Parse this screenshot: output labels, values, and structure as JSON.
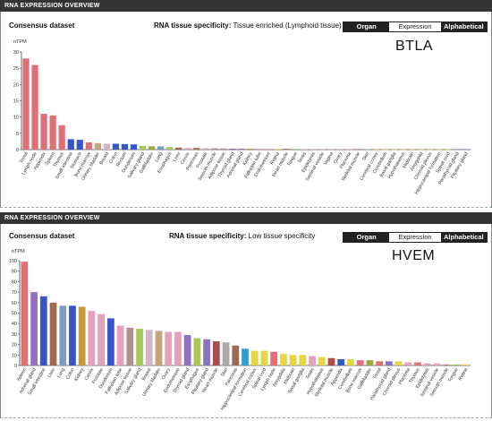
{
  "panels": [
    {
      "header": "RNA EXPRESSION OVERVIEW",
      "dataset": "Consensus dataset",
      "specificity_label": "RNA tissue specificity:",
      "specificity_value": "Tissue enriched (Lymphoid tissue)",
      "buttons": [
        "Organ",
        "Expression",
        "Alphabetical"
      ],
      "active_buttons": [
        "Organ",
        "Alphabetical"
      ],
      "gene": "BTLA",
      "chart_data": {
        "type": "bar",
        "ylabel": "nTPM",
        "ylim": [
          0,
          30
        ],
        "yticks": [
          0,
          5,
          10,
          15,
          20,
          25,
          30
        ],
        "categories": [
          "Tonsil",
          "Lymph node",
          "Appendix",
          "Spleen",
          "Thymus",
          "Small intestine",
          "Stomach",
          "Bone marrow",
          "Urinary bladder",
          "Breast",
          "Colon",
          "Rectum",
          "Duodenum",
          "Salivary gland",
          "Gallbladder",
          "Lung",
          "Esophagus",
          "Liver",
          "Cervix",
          "Pancreas",
          "Prostate",
          "Smooth muscle",
          "Adipose tissue",
          "Thyroid gland",
          "Adrenal gland",
          "Kidney",
          "Fallopian tube",
          "Endometrium",
          "Retina",
          "Heart muscle",
          "Tongue",
          "Testis",
          "Epididymis",
          "Seminal vesicle",
          "Vagina",
          "Ovary",
          "Placenta",
          "Skeletal muscle",
          "Skin",
          "Cerebral cortex",
          "Cerebellum",
          "Basal ganglia",
          "Hypothalamus",
          "Midbrain",
          "Amygdala",
          "Choroid plexus",
          "Hippocampal formation",
          "Spinal cord",
          "Parathyroid gland",
          "Pituitary gland"
        ],
        "values": [
          28,
          26,
          11,
          10.5,
          7.5,
          3.2,
          3,
          2.2,
          2,
          1.8,
          1.8,
          1.7,
          1.6,
          1.1,
          1,
          1,
          0.8,
          0.6,
          0.5,
          0.5,
          0.4,
          0.4,
          0.35,
          0.3,
          0.3,
          0.3,
          0.3,
          0.25,
          0.2,
          0.2,
          0.2,
          0.15,
          0.15,
          0.15,
          0.1,
          0.1,
          0.1,
          0.1,
          0.1,
          0.05,
          0.05,
          0.05,
          0.05,
          0.05,
          0.05,
          0.05,
          0.05,
          0.05,
          0.05,
          0.05
        ],
        "colors": [
          "#e07078",
          "#e07078",
          "#e07078",
          "#e07078",
          "#e07078",
          "#3655c8",
          "#3655c8",
          "#e07078",
          "#c8a37a",
          "#d1b6c8",
          "#3655c8",
          "#3655c8",
          "#3655c8",
          "#a9c85a",
          "#9da93a",
          "#7a9ec0",
          "#a9c85a",
          "#9e6a52",
          "#e3a1bd",
          "#9e6a52",
          "#e3a1bd",
          "#b38f8f",
          "#b38f8f",
          "#9070c0",
          "#9070c0",
          "#c89a3c",
          "#e3a1bd",
          "#e3a1bd",
          "#eed25a",
          "#b04b4b",
          "#a9c85a",
          "#e3a1bd",
          "#e3a1bd",
          "#e3a1bd",
          "#e3a1bd",
          "#e3a1bd",
          "#e3a1bd",
          "#b04b4b",
          "#a9a9a9",
          "#e6d645",
          "#e6d645",
          "#e6d645",
          "#e6d645",
          "#e6d645",
          "#e6d645",
          "#e6d645",
          "#e6d645",
          "#e6d645",
          "#9070c0",
          "#9070c0"
        ]
      }
    },
    {
      "header": "RNA EXPRESSION OVERVIEW",
      "dataset": "Consensus dataset",
      "specificity_label": "RNA tissue specificity:",
      "specificity_value": "Low tissue specificity",
      "buttons": [
        "Organ",
        "Expression",
        "Alphabetical"
      ],
      "active_buttons": [
        "Organ",
        "Alphabetical"
      ],
      "gene": "HVEM",
      "chart_data": {
        "type": "bar",
        "ylabel": "nTPM",
        "ylim": [
          0,
          100
        ],
        "yticks": [
          0,
          10,
          20,
          30,
          40,
          50,
          60,
          70,
          80,
          90,
          100
        ],
        "categories": [
          "Spleen",
          "Adrenal gland",
          "Small intestine",
          "Liver",
          "Lung",
          "Colon",
          "Kidney",
          "Cervix",
          "Prostate",
          "Duodenum",
          "Fallopian tube",
          "Adipose tissue",
          "Salivary gland",
          "Breast",
          "Urinary bladder",
          "Ovary",
          "Endometrium",
          "Thyroid gland",
          "Esophagus",
          "Pituitary gland",
          "Heart muscle",
          "Skin",
          "Pancreas",
          "Hippocampal formation",
          "Cerebral cortex",
          "Spinal cord",
          "Lymph node",
          "Amygdala",
          "Midbrain",
          "Basal ganglia",
          "Testis",
          "Hypothalamus",
          "Skeletal muscle",
          "Appendix",
          "Cerebellum",
          "Bone marrow",
          "Gallbladder",
          "Tonsil",
          "Parathyroid gland",
          "Choroid plexus",
          "Placenta",
          "Thymus",
          "Epididymis",
          "Seminal vesicle",
          "Smooth muscle",
          "Tongue",
          "Retina"
        ],
        "values": [
          99,
          70,
          66,
          60,
          57,
          57,
          56,
          52,
          49,
          45,
          38,
          36,
          35,
          34,
          33,
          32,
          32,
          29,
          26,
          25,
          23,
          22,
          19,
          16,
          14,
          14,
          13,
          11,
          10,
          10,
          9,
          8,
          7,
          6,
          6,
          5,
          5,
          4,
          4,
          4,
          3,
          3,
          2,
          2,
          1,
          1,
          1
        ],
        "colors": [
          "#e07078",
          "#9070c0",
          "#3655c8",
          "#9e6a52",
          "#7a9ec0",
          "#3655c8",
          "#c89a3c",
          "#e3a1bd",
          "#e3a1bd",
          "#3655c8",
          "#e3a1bd",
          "#b38f8f",
          "#a9c85a",
          "#d1b6c8",
          "#c8a37a",
          "#e3a1bd",
          "#e3a1bd",
          "#9070c0",
          "#a9c85a",
          "#9070c0",
          "#b04b4b",
          "#a9a9a9",
          "#9e6a52",
          "#2a9fd0",
          "#e6d645",
          "#e6d645",
          "#e07078",
          "#e6d645",
          "#e6d645",
          "#e6d645",
          "#e3a1bd",
          "#e6d645",
          "#b04b4b",
          "#3655c8",
          "#e6d645",
          "#e07078",
          "#9da93a",
          "#e07078",
          "#9070c0",
          "#e6d645",
          "#e3a1bd",
          "#e07078",
          "#e3a1bd",
          "#e3a1bd",
          "#b38f8f",
          "#a9c85a",
          "#eed25a"
        ]
      }
    }
  ]
}
